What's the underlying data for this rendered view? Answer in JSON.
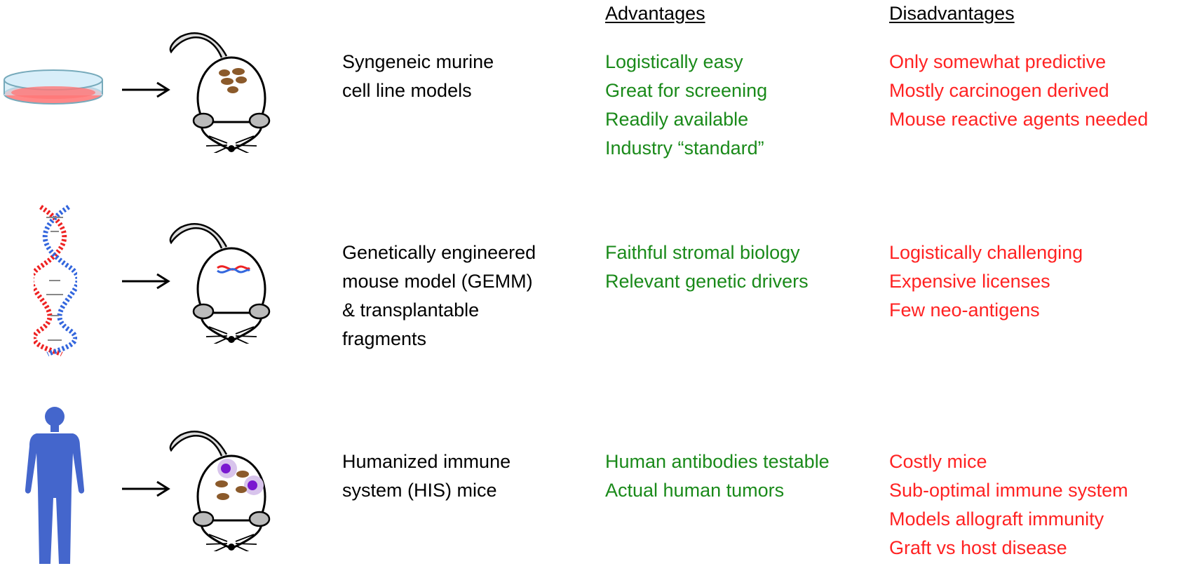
{
  "headers": {
    "advantages": "Advantages",
    "disadvantages": "Disadvantages"
  },
  "rows": [
    {
      "icon": "petri-dish-icon",
      "label": [
        "Syngeneic murine",
        "cell line models"
      ],
      "advantages": [
        "Logistically easy",
        "Great for screening",
        "Readily available",
        "Industry “standard”"
      ],
      "disadvantages": [
        "Only somewhat predictive",
        "Mostly carcinogen derived",
        "Mouse reactive agents needed"
      ]
    },
    {
      "icon": "dna-helix-icon",
      "label": [
        "Genetically engineered",
        "mouse model (GEMM)",
        "& transplantable",
        "fragments"
      ],
      "advantages": [
        "Faithful stromal biology",
        "Relevant genetic drivers"
      ],
      "disadvantages": [
        "Logistically challenging",
        "Expensive licenses",
        "Few neo-antigens"
      ]
    },
    {
      "icon": "human-figure-icon",
      "label": [
        "Humanized immune",
        "system (HIS) mice"
      ],
      "advantages": [
        "Human antibodies testable",
        "Actual human tumors"
      ],
      "disadvantages": [
        "Costly mice",
        "Sub-optimal immune system",
        "Models allograft immunity",
        "Graft vs host disease"
      ]
    }
  ],
  "colors": {
    "advantage": "#1a8a1a",
    "disadvantage": "#ff2222",
    "human": "#4466cc",
    "tumor": "#8b5a2b"
  }
}
